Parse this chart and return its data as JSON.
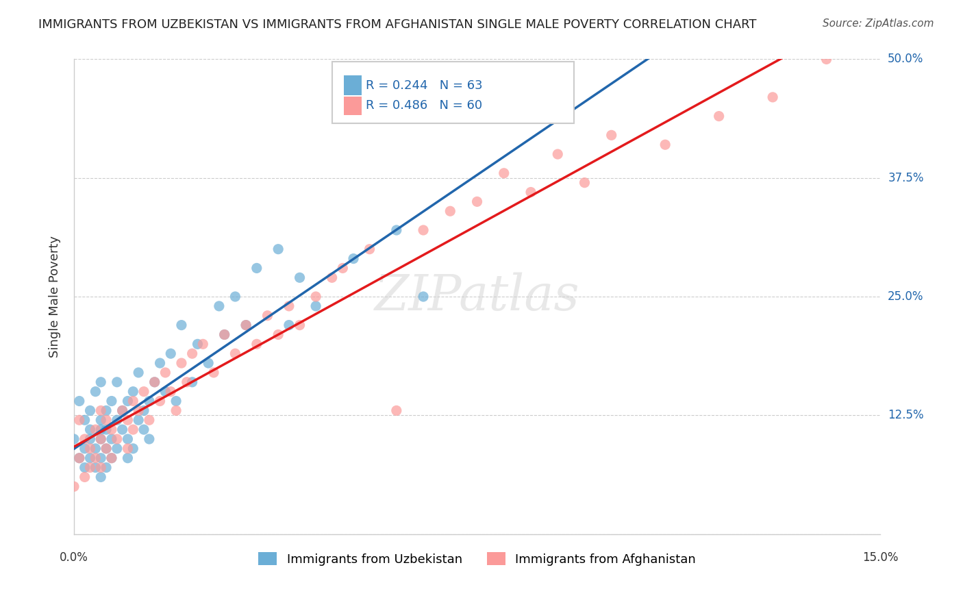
{
  "title": "IMMIGRANTS FROM UZBEKISTAN VS IMMIGRANTS FROM AFGHANISTAN SINGLE MALE POVERTY CORRELATION CHART",
  "source": "Source: ZipAtlas.com",
  "xlabel_bottom": "",
  "ylabel": "Single Male Poverty",
  "legend_label1": "Immigrants from Uzbekistan",
  "legend_label2": "Immigrants from Afghanistan",
  "r1": 0.244,
  "n1": 63,
  "r2": 0.486,
  "n2": 60,
  "color1": "#6baed6",
  "color2": "#fb9a99",
  "line_color1": "#2166ac",
  "line_color2": "#e31a1c",
  "xmin": 0.0,
  "xmax": 0.15,
  "ymin": 0.0,
  "ymax": 0.5,
  "xticks": [
    0.0,
    0.025,
    0.05,
    0.075,
    0.1,
    0.125,
    0.15
  ],
  "xtick_labels": [
    "0.0%",
    "",
    "",
    "",
    "",
    "",
    "15.0%"
  ],
  "yticks": [
    0.0,
    0.125,
    0.25,
    0.375,
    0.5
  ],
  "ytick_labels": [
    "",
    "12.5%",
    "25.0%",
    "37.5%",
    "50.0%"
  ],
  "grid_color": "#cccccc",
  "background_color": "#ffffff",
  "watermark": "ZIPatlas",
  "scatter1_x": [
    0.0,
    0.001,
    0.001,
    0.002,
    0.002,
    0.002,
    0.003,
    0.003,
    0.003,
    0.003,
    0.004,
    0.004,
    0.004,
    0.005,
    0.005,
    0.005,
    0.005,
    0.005,
    0.005,
    0.006,
    0.006,
    0.006,
    0.006,
    0.007,
    0.007,
    0.007,
    0.008,
    0.008,
    0.008,
    0.009,
    0.009,
    0.01,
    0.01,
    0.01,
    0.011,
    0.011,
    0.012,
    0.012,
    0.013,
    0.013,
    0.014,
    0.014,
    0.015,
    0.016,
    0.017,
    0.018,
    0.019,
    0.02,
    0.022,
    0.023,
    0.025,
    0.027,
    0.028,
    0.03,
    0.032,
    0.034,
    0.038,
    0.04,
    0.042,
    0.045,
    0.052,
    0.06,
    0.065
  ],
  "scatter1_y": [
    0.1,
    0.08,
    0.14,
    0.12,
    0.09,
    0.07,
    0.11,
    0.13,
    0.1,
    0.08,
    0.15,
    0.09,
    0.07,
    0.11,
    0.12,
    0.08,
    0.16,
    0.06,
    0.1,
    0.13,
    0.09,
    0.11,
    0.07,
    0.14,
    0.1,
    0.08,
    0.12,
    0.16,
    0.09,
    0.11,
    0.13,
    0.14,
    0.1,
    0.08,
    0.15,
    0.09,
    0.12,
    0.17,
    0.11,
    0.13,
    0.14,
    0.1,
    0.16,
    0.18,
    0.15,
    0.19,
    0.14,
    0.22,
    0.16,
    0.2,
    0.18,
    0.24,
    0.21,
    0.25,
    0.22,
    0.28,
    0.3,
    0.22,
    0.27,
    0.24,
    0.29,
    0.32,
    0.25
  ],
  "scatter2_x": [
    0.0,
    0.001,
    0.001,
    0.002,
    0.002,
    0.003,
    0.003,
    0.004,
    0.004,
    0.005,
    0.005,
    0.005,
    0.006,
    0.006,
    0.007,
    0.007,
    0.008,
    0.009,
    0.01,
    0.01,
    0.011,
    0.011,
    0.012,
    0.013,
    0.014,
    0.015,
    0.016,
    0.017,
    0.018,
    0.019,
    0.02,
    0.021,
    0.022,
    0.024,
    0.026,
    0.028,
    0.03,
    0.032,
    0.034,
    0.036,
    0.038,
    0.04,
    0.042,
    0.045,
    0.048,
    0.05,
    0.055,
    0.06,
    0.065,
    0.07,
    0.075,
    0.08,
    0.085,
    0.09,
    0.095,
    0.1,
    0.11,
    0.12,
    0.13,
    0.14
  ],
  "scatter2_y": [
    0.05,
    0.08,
    0.12,
    0.06,
    0.1,
    0.07,
    0.09,
    0.11,
    0.08,
    0.13,
    0.07,
    0.1,
    0.12,
    0.09,
    0.11,
    0.08,
    0.1,
    0.13,
    0.12,
    0.09,
    0.14,
    0.11,
    0.13,
    0.15,
    0.12,
    0.16,
    0.14,
    0.17,
    0.15,
    0.13,
    0.18,
    0.16,
    0.19,
    0.2,
    0.17,
    0.21,
    0.19,
    0.22,
    0.2,
    0.23,
    0.21,
    0.24,
    0.22,
    0.25,
    0.27,
    0.28,
    0.3,
    0.13,
    0.32,
    0.34,
    0.35,
    0.38,
    0.36,
    0.4,
    0.37,
    0.42,
    0.41,
    0.44,
    0.46,
    0.5
  ]
}
